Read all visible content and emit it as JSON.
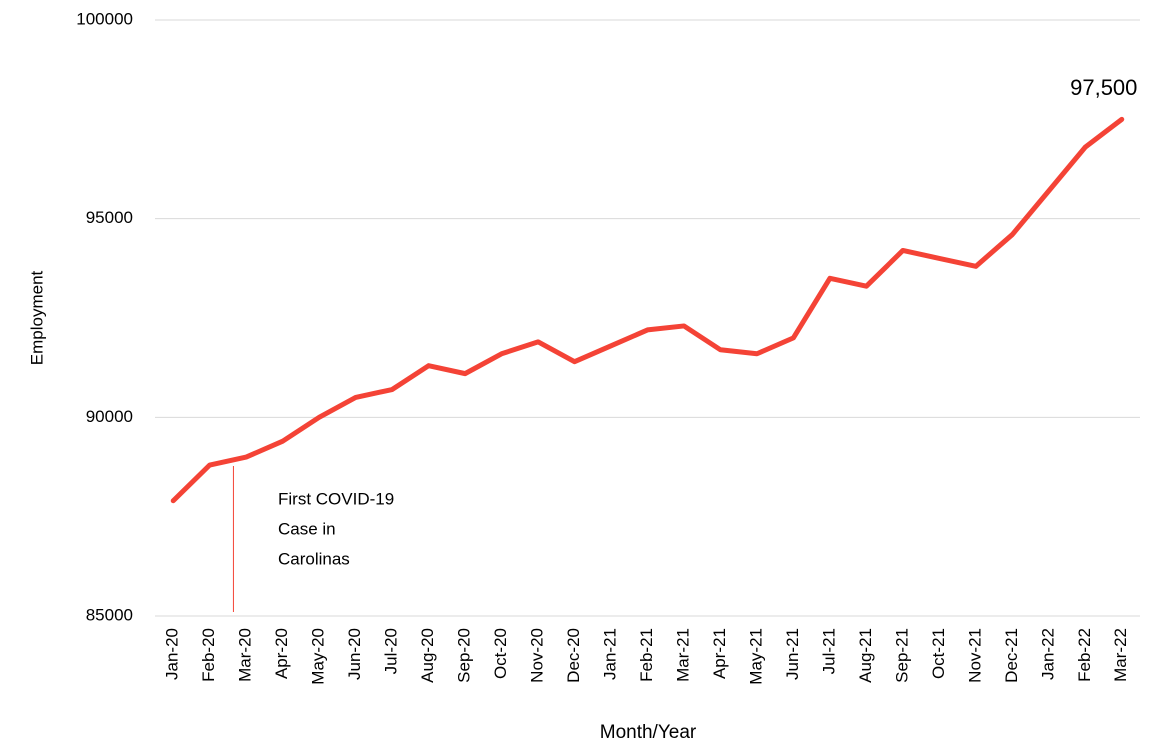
{
  "chart_data": {
    "type": "line",
    "x_label": "Month/Year",
    "y_label": "Employment",
    "categories": [
      "Jan-20",
      "Feb-20",
      "Mar-20",
      "Apr-20",
      "May-20",
      "Jun-20",
      "Jul-20",
      "Aug-20",
      "Sep-20",
      "Oct-20",
      "Nov-20",
      "Dec-20",
      "Jan-21",
      "Feb-21",
      "Mar-21",
      "Apr-21",
      "May-21",
      "Jun-21",
      "Jul-21",
      "Aug-21",
      "Sep-21",
      "Oct-21",
      "Nov-21",
      "Dec-21",
      "Jan-22",
      "Feb-22",
      "Mar-22"
    ],
    "series": [
      {
        "name": "Employment",
        "color": "#f44336",
        "values": [
          87900,
          88800,
          89000,
          89400,
          90000,
          90500,
          90700,
          91300,
          91100,
          91600,
          91900,
          91400,
          91800,
          92200,
          92300,
          91700,
          91600,
          92000,
          93500,
          93300,
          94200,
          94000,
          93800,
          94600,
          95700,
          96800,
          97500
        ],
        "value_labels": [
          null,
          null,
          null,
          null,
          null,
          null,
          null,
          null,
          null,
          null,
          null,
          null,
          null,
          null,
          null,
          null,
          null,
          null,
          null,
          null,
          null,
          null,
          null,
          null,
          null,
          null,
          "97,500"
        ]
      }
    ],
    "annotation": [
      "First COVID-19",
      "Case in",
      "Carolinas"
    ],
    "ylim": [
      85000,
      100000
    ],
    "yticks": [
      85000,
      90000,
      95000,
      100000
    ],
    "grid": true
  }
}
